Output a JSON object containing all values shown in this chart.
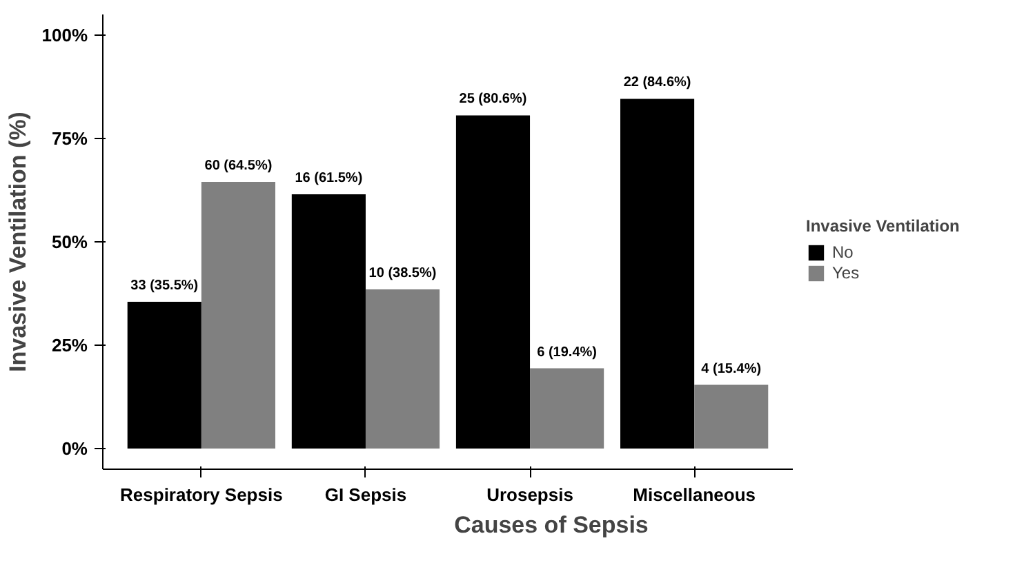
{
  "chart_data": {
    "type": "bar",
    "xlabel": "Causes of Sepsis",
    "ylabel": "Invasive Ventilation (%)",
    "legend_title": "Invasive Ventilation",
    "categories": [
      "Respiratory Sepsis",
      "GI Sepsis",
      "Urosepsis",
      "Miscellaneous"
    ],
    "series": [
      {
        "name": "No",
        "color": "#000000",
        "values": [
          35.5,
          61.5,
          80.6,
          84.6
        ],
        "value_labels": [
          "33 (35.5%)",
          "16 (61.5%)",
          "25 (80.6%)",
          "22 (84.6%)"
        ]
      },
      {
        "name": "Yes",
        "color": "#808080",
        "values": [
          64.5,
          38.5,
          19.4,
          15.4
        ],
        "value_labels": [
          "60 (64.5%)",
          "10 (38.5%)",
          "6 (19.4%)",
          "4 (15.4%)"
        ]
      }
    ],
    "ylim": [
      -5,
      105
    ],
    "yticks": [
      {
        "value": 0,
        "label": "0%"
      },
      {
        "value": 25,
        "label": "25%"
      },
      {
        "value": 50,
        "label": "50%"
      },
      {
        "value": 75,
        "label": "75%"
      },
      {
        "value": 100,
        "label": "100%"
      }
    ],
    "grid": false,
    "legend": "right"
  }
}
